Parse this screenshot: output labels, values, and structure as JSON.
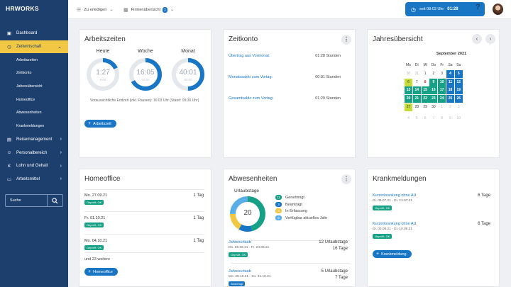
{
  "app": {
    "logo": "HRWORKS"
  },
  "nav": {
    "dashboard": "Dashboard",
    "zeitwirtschaft": "Zeitwirtschaft",
    "sub": [
      "Arbeitszeiten",
      "Zeitkonto",
      "Jahresübersicht",
      "Homeoffice",
      "Abwesenheiten",
      "Krankmeldungen"
    ],
    "reisemanagement": "Reisemanagement",
    "personalbereich": "Personalbereich",
    "lohn": "Lohn und Gehalt",
    "arbeitsmittel": "Arbeitsmittel"
  },
  "search": {
    "placeholder": "Suche"
  },
  "topbar": {
    "todo_label": "Zu erledigen",
    "firm_label": "Firmenübersicht",
    "firm_count": "1",
    "clock_text": "seit 08:03 Uhr",
    "clock_time": "01:28",
    "help": "?"
  },
  "arbeitszeiten": {
    "title": "Arbeitszeiten",
    "rings": [
      {
        "label": "Heute",
        "value": "1:27",
        "sub": "8:00",
        "fraction": 0.18,
        "color": "#1976c5"
      },
      {
        "label": "Woche",
        "value": "16:05",
        "sub": "24:00",
        "fraction": 0.67,
        "color": "#1976c5"
      },
      {
        "label": "Monat",
        "value": "40:01",
        "sub": "80:00",
        "fraction": 0.5,
        "color": "#1976c5"
      }
    ],
    "note": "Voraussichtliche Endzeit (inkl. Pausen): 16:03 Uhr (Stand: 09:30 Uhr)",
    "button": "Arbeitszeit"
  },
  "zeitkonto": {
    "title": "Zeitkonto",
    "rows": [
      {
        "label": "Übertrag aus Vormonat:",
        "value": "01:28 Stunden"
      },
      {
        "label": "Monatssaldo zum Vortag:",
        "value": "00:01 Stunden"
      },
      {
        "label": "Gesamtsaldo zum Vortag:",
        "value": "01:29 Stunden"
      }
    ]
  },
  "jahres": {
    "title": "Jahresübersicht",
    "month": "September 2021",
    "dows": [
      "Mo",
      "Di",
      "Mi",
      "Do",
      "Fr",
      "Sa",
      "So"
    ],
    "weeks": [
      [
        "30",
        "31",
        "1",
        "2",
        "3",
        "4",
        "5"
      ],
      [
        "6",
        "7",
        "8",
        "9",
        "10",
        "11",
        "12"
      ],
      [
        "13",
        "14",
        "15",
        "16",
        "17",
        "18",
        "19"
      ],
      [
        "20",
        "21",
        "22",
        "23",
        "24",
        "25",
        "26"
      ],
      [
        "27",
        "28",
        "29",
        "30",
        "1",
        "2",
        "3"
      ],
      [
        "4",
        "5",
        "6",
        "7",
        "8",
        "9",
        "10"
      ]
    ],
    "styles": [
      [
        "m",
        "m",
        "",
        "",
        "",
        "bb",
        "bb"
      ],
      [
        "y",
        "",
        "r",
        "g",
        "g",
        "bb",
        "bb"
      ],
      [
        "g",
        "g",
        "g",
        "g",
        "g",
        "bb",
        "bb"
      ],
      [
        "g",
        "g",
        "g",
        "g",
        "g",
        "bb",
        "bb"
      ],
      [
        "y",
        "",
        "",
        "",
        "m",
        "m",
        "m"
      ],
      [
        "m",
        "m",
        "m",
        "m",
        "m",
        "m",
        "m"
      ]
    ]
  },
  "homeoffice": {
    "title": "Homeoffice",
    "rows": [
      {
        "date": "Mo. 27.09.21",
        "status": "Geprüft, OK",
        "value": "1 Tag"
      },
      {
        "date": "Fr. 01.10.21",
        "status": "Geprüft, OK",
        "value": "1 Tag"
      },
      {
        "date": "Mo. 04.10.21",
        "status": "Geprüft, OK",
        "value": "1 Tag"
      }
    ],
    "more": "und 23 weitere",
    "button": "Homeoffice"
  },
  "abwesenheiten": {
    "title": "Abwesenheiten",
    "subtitle": "Urlaubstage",
    "center": "20",
    "donut": [
      {
        "value": 11,
        "color": "#16a085"
      },
      {
        "value": 3,
        "color": "#1976c5"
      },
      {
        "value": 4,
        "color": "#f2c744"
      },
      {
        "value": 6,
        "color": "#5aaee8"
      }
    ],
    "legend": [
      {
        "count": "11",
        "label": "Genehmigt",
        "color": "#16a085"
      },
      {
        "count": "3",
        "label": "Beantragt",
        "color": "#1976c5"
      },
      {
        "count": "4",
        "label": "In Erfassung",
        "color": "#f2c744"
      },
      {
        "count": "6",
        "label": "Verfügbar aktuelles Jahr",
        "color": "#5aaee8"
      }
    ],
    "items": [
      {
        "label": "Jahresurlaub",
        "dates": "Do. 09.09.21 - Fr. 24.09.21",
        "status": "Geprüft, OK",
        "v1": "12 Urlaubstage",
        "v2": "16 Tage"
      },
      {
        "label": "Jahresurlaub",
        "dates": "Mo. 25.10.21 - So. 31.10.21",
        "status": "Beantragt",
        "v1": "5 Urlaubstage",
        "v2": "7 Tage"
      }
    ]
  },
  "krank": {
    "title": "Krankmeldungen",
    "items": [
      {
        "label": "Kurzerkrankung ohne AU",
        "dates": "Di. 06.07.21 - Di. 13.07.21",
        "status": "Geprüft, OK",
        "value": "6 Tage"
      },
      {
        "label": "Kurzerkrankung ohne AU",
        "dates": "Di. 03.08.21 - Di. 10.08.21",
        "status": "Geprüft, OK",
        "value": "6 Tage"
      }
    ],
    "button": "Krankmeldung"
  }
}
